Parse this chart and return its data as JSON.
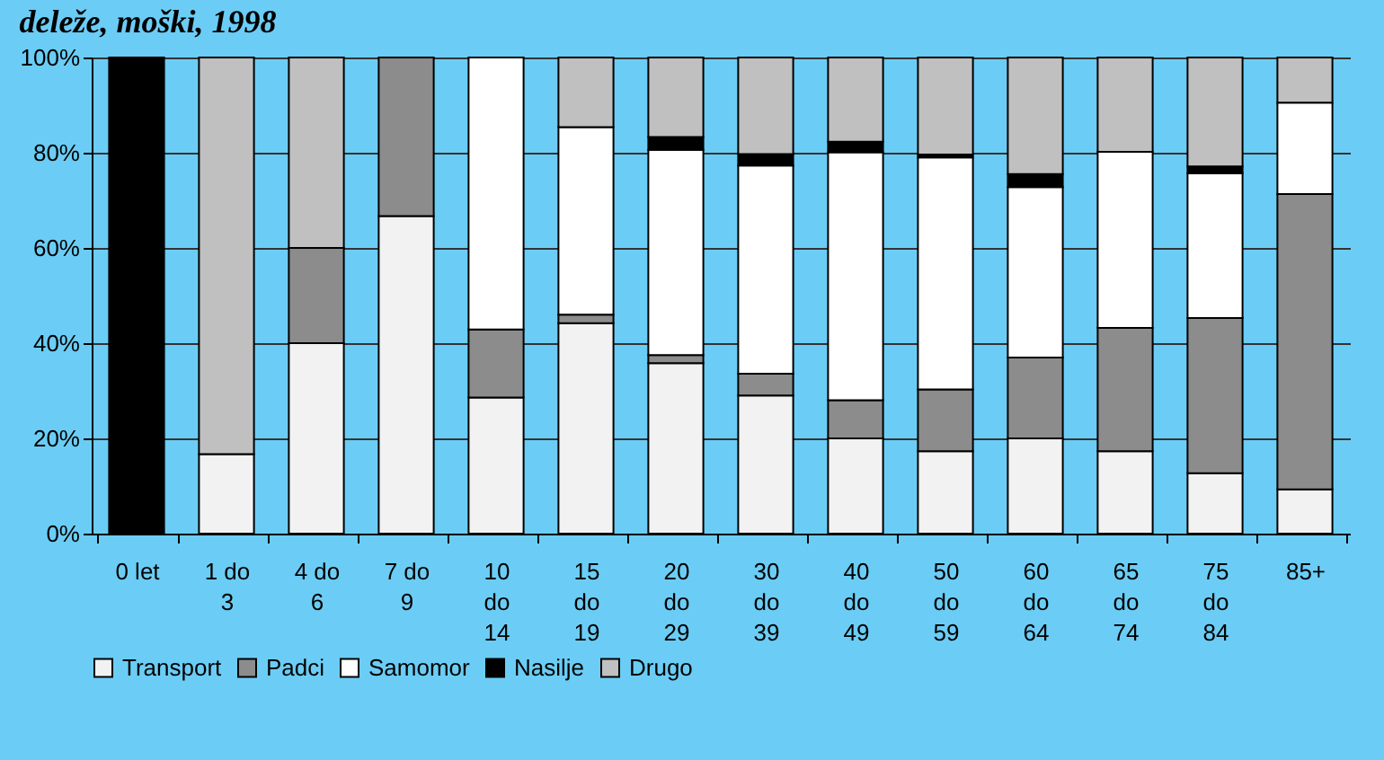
{
  "chart_data": {
    "type": "bar",
    "stacked": true,
    "title": "deleže, moški, 1998",
    "categories": [
      "0 let",
      "1 do\n3",
      "4 do\n6",
      "7 do\n9",
      "10\ndo\n14",
      "15\ndo\n19",
      "20\ndo\n29",
      "30\ndo\n39",
      "40\ndo\n49",
      "50\ndo\n59",
      "60\ndo\n64",
      "65\ndo\n74",
      "75\ndo\n84",
      "85+"
    ],
    "series": [
      {
        "name": "Transport",
        "color": "#f2f2f2",
        "values": [
          null,
          16.7,
          40,
          66.7,
          28.6,
          44.2,
          35.8,
          29.0,
          20.0,
          17.3,
          20.0,
          17.3,
          12.7,
          9.3
        ]
      },
      {
        "name": "Padci",
        "color": "#8c8c8c",
        "values": [
          null,
          null,
          20,
          33.3,
          14.3,
          1.8,
          1.7,
          4.6,
          8.0,
          13.0,
          17.0,
          25.9,
          32.6,
          62.0
        ]
      },
      {
        "name": "Samomor",
        "color": "#ffffff",
        "values": [
          null,
          null,
          null,
          null,
          57.1,
          39.4,
          43.1,
          43.7,
          52.1,
          48.7,
          35.8,
          37.0,
          30.4,
          19.2
        ]
      },
      {
        "name": "Nasilje",
        "color": "#000000",
        "values": [
          100,
          null,
          null,
          null,
          null,
          null,
          2.7,
          2.4,
          2.2,
          0.6,
          2.7,
          null,
          1.4,
          null
        ]
      },
      {
        "name": "Drugo",
        "color": "#c0c0c0",
        "values": [
          null,
          83.3,
          40,
          null,
          null,
          14.6,
          16.7,
          20.3,
          17.7,
          20.4,
          24.5,
          19.8,
          22.9,
          9.5
        ]
      }
    ],
    "ylim": [
      0,
      100
    ],
    "yticks": [
      {
        "value": 0,
        "label": "0%"
      },
      {
        "value": 20,
        "label": "20%"
      },
      {
        "value": 40,
        "label": "40%"
      },
      {
        "value": 60,
        "label": "60%"
      },
      {
        "value": 80,
        "label": "80%"
      },
      {
        "value": 100,
        "label": "100%"
      }
    ],
    "grid": "y",
    "legend": "bottom"
  }
}
